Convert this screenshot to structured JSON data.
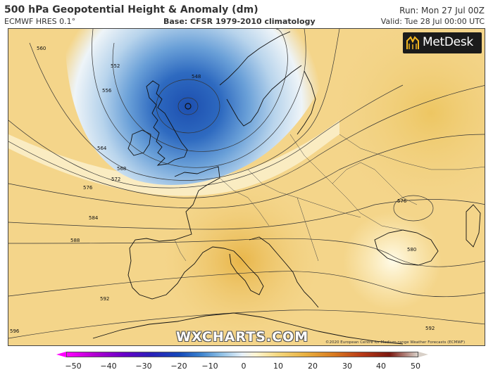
{
  "header": {
    "title": "500 hPa Geopotential Height & Anomaly (dm)",
    "model": "ECMWF HRES 0.1°",
    "base": "Base: CFSR 1979-2010 climatology",
    "run": "Run: Mon 27 Jul 00Z",
    "valid": "Valid: Tue 28 Jul 00:00 UTC"
  },
  "logo": {
    "text": "MetDesk",
    "icon": "metdesk-logo-icon"
  },
  "watermark": "WXCHARTS.COM",
  "copyright": "©2020 European Centre for Medium-range Weather Forecasts (ECMWF)",
  "map": {
    "region": "Europe",
    "low_center_marker": "low-pressure-center-icon",
    "contour_labels": [
      "560",
      "552",
      "556",
      "548",
      "564",
      "568",
      "572",
      "576",
      "584",
      "588",
      "592",
      "596",
      "576",
      "580",
      "592"
    ]
  },
  "colorbar": {
    "ticks": [
      "−50",
      "−40",
      "−30",
      "−20",
      "−10",
      "0",
      "10",
      "20",
      "30",
      "40",
      "50"
    ],
    "low_color": "#ff00ff",
    "high_color": "#d8d0c8"
  }
}
